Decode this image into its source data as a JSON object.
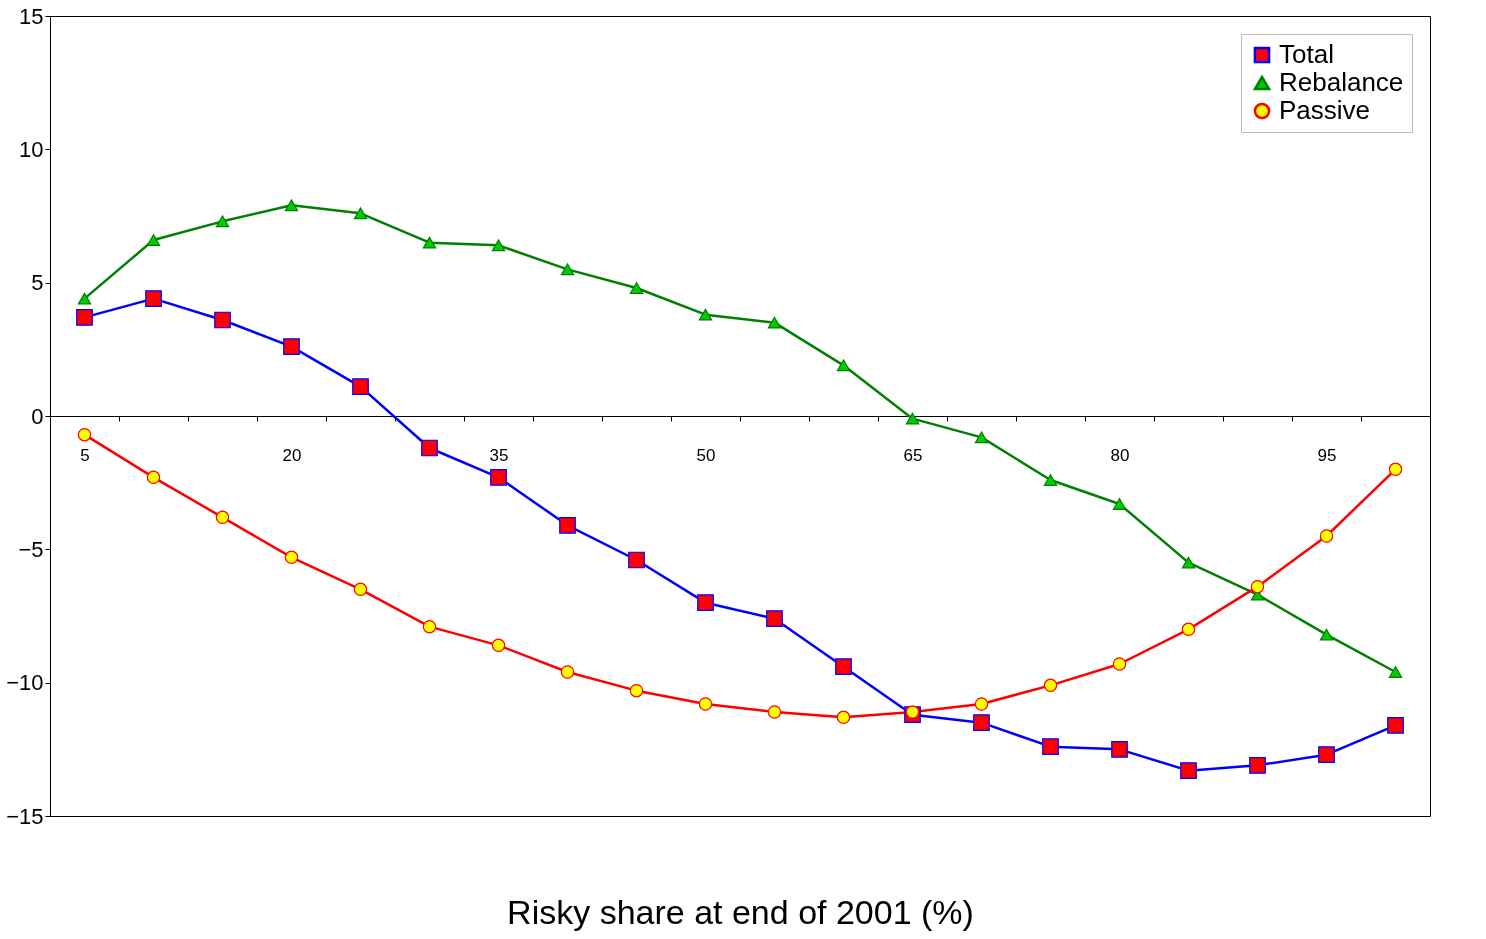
{
  "chart_data": {
    "type": "line",
    "xlabel": "Risky share at end of 2001 (%)",
    "categories": [
      "5",
      null,
      null,
      "20",
      null,
      null,
      "35",
      null,
      null,
      "50",
      null,
      null,
      "65",
      null,
      null,
      "80",
      null,
      null,
      "95",
      null
    ],
    "series": [
      {
        "name": "Total",
        "color": "#0000ff",
        "marker": "square",
        "values": [
          3.7,
          4.4,
          3.6,
          2.6,
          1.1,
          -1.2,
          -2.3,
          -4.1,
          -5.4,
          -7.0,
          -7.6,
          -9.4,
          -11.2,
          -11.5,
          -12.4,
          -12.5,
          -13.3,
          -13.1,
          -12.7,
          -11.6
        ]
      },
      {
        "name": "Rebalance",
        "color": "#008000",
        "marker": "triangle",
        "values": [
          4.4,
          6.6,
          7.3,
          7.9,
          7.6,
          6.5,
          6.4,
          5.5,
          4.8,
          3.8,
          3.5,
          1.9,
          -0.1,
          -0.8,
          -2.4,
          -3.3,
          -5.5,
          -6.7,
          -8.2,
          -9.6
        ]
      },
      {
        "name": "Passive",
        "color": "#ff0000",
        "marker": "circle",
        "values": [
          -0.7,
          -2.3,
          -3.8,
          -5.3,
          -6.5,
          -7.9,
          -8.6,
          -9.6,
          -10.3,
          -10.8,
          -11.1,
          -11.3,
          -11.1,
          -10.8,
          -10.1,
          -9.3,
          -8.0,
          -6.4,
          -4.5,
          -2.0
        ]
      }
    ],
    "ylim": [
      -15,
      15
    ],
    "yticks": [
      -15,
      -10,
      -5,
      0,
      5,
      10,
      15
    ],
    "grid": false,
    "legend": "top right",
    "line_style": "solid"
  }
}
